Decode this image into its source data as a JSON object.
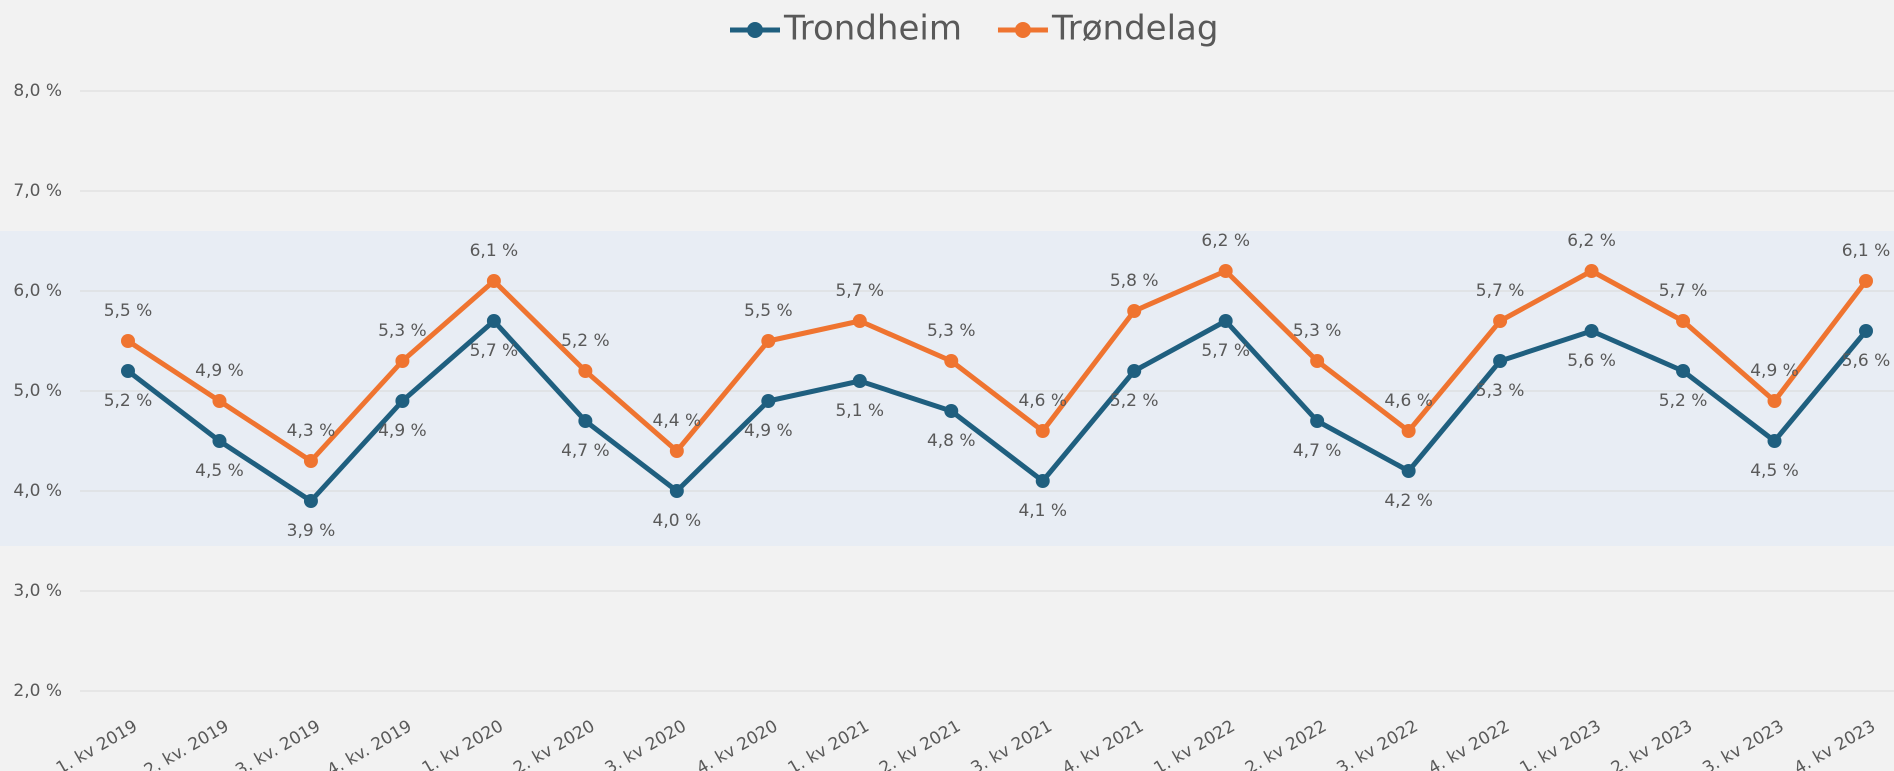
{
  "chart_data": {
    "type": "line",
    "categories": [
      "1. kv 2019",
      "2. kv. 2019",
      "3. kv. 2019",
      "4. kv. 2019",
      "1. kv 2020",
      "2. kv 2020",
      "3. kv 2020",
      "4. kv 2020",
      "1. kv 2021",
      "2. kv 2021",
      "3. kv 2021",
      "4. kv 2021",
      "1. kv 2022",
      "2. kv 2022",
      "3. kv 2022",
      "4. kv 2022",
      "1. kv 2023",
      "2. kv 2023",
      "3. kv 2023",
      "4. kv 2023"
    ],
    "series": [
      {
        "name": "Trondheim",
        "color": "#1f5f7f",
        "values": [
          5.2,
          4.5,
          3.9,
          4.9,
          5.7,
          4.7,
          4.0,
          4.9,
          5.1,
          4.8,
          4.1,
          5.2,
          5.7,
          4.7,
          4.2,
          5.3,
          5.6,
          5.2,
          4.5,
          5.6
        ],
        "value_labels": [
          "5,2 %",
          "4,5 %",
          "3,9 %",
          "4,9 %",
          "5,7 %",
          "4,7 %",
          "4,0 %",
          "4,9 %",
          "5,1 %",
          "4,8 %",
          "4,1 %",
          "5,2 %",
          "5,7 %",
          "4,7 %",
          "4,2 %",
          "5,3 %",
          "5,6 %",
          "5,2 %",
          "4,5 %",
          "5,6 %"
        ]
      },
      {
        "name": "Trøndelag",
        "color": "#ef7430",
        "values": [
          5.5,
          4.9,
          4.3,
          5.3,
          6.1,
          5.2,
          4.4,
          5.5,
          5.7,
          5.3,
          4.6,
          5.8,
          6.2,
          5.3,
          4.6,
          5.7,
          6.2,
          5.7,
          4.9,
          6.1
        ],
        "value_labels": [
          "5,5 %",
          "4,9 %",
          "4,3 %",
          "5,3 %",
          "6,1 %",
          "5,2 %",
          "4,4 %",
          "5,5 %",
          "5,7 %",
          "5,3 %",
          "4,6 %",
          "5,8 %",
          "6,2 %",
          "5,3 %",
          "4,6 %",
          "5,7 %",
          "6,2 %",
          "5,7 %",
          "4,9 %",
          "6,1 %"
        ]
      }
    ],
    "ylim": [
      2.0,
      8.0
    ],
    "yticks": [
      {
        "value": 2.0,
        "label": "2,0 %"
      },
      {
        "value": 3.0,
        "label": "3,0 %"
      },
      {
        "value": 4.0,
        "label": "4,0 %"
      },
      {
        "value": 5.0,
        "label": "5,0 %"
      },
      {
        "value": 6.0,
        "label": "6,0 %"
      },
      {
        "value": 7.0,
        "label": "7,0 %"
      },
      {
        "value": 8.0,
        "label": "8,0 %"
      }
    ],
    "grid": true,
    "legend": "top",
    "highlight_band": {
      "from": 3.45,
      "to": 6.6,
      "color": "#e8edf4"
    }
  }
}
